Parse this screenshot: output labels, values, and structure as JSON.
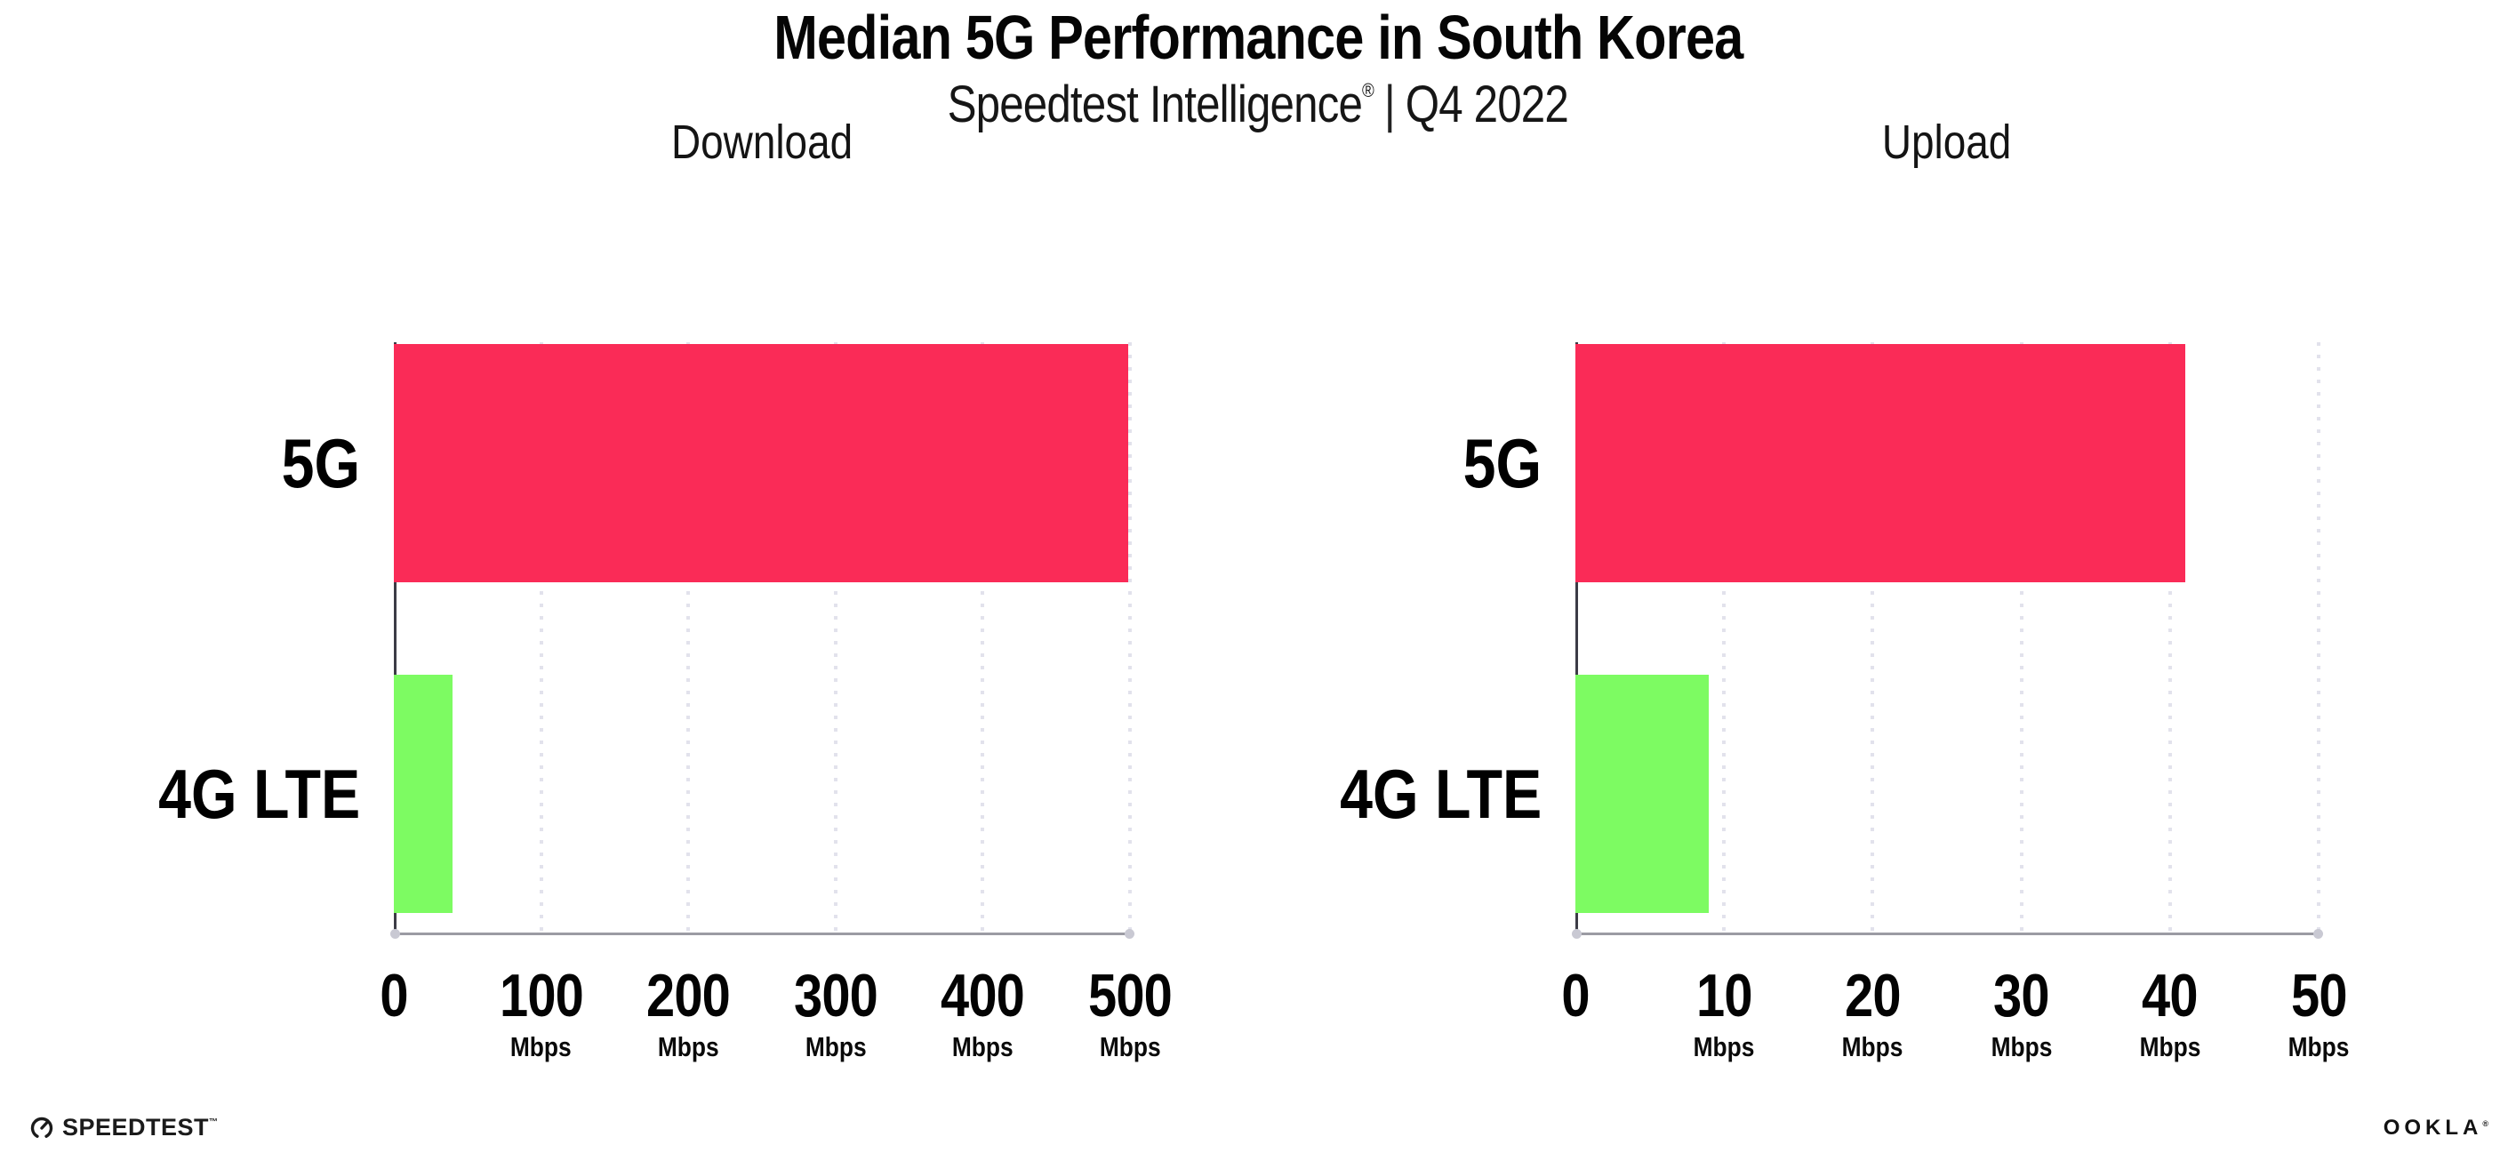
{
  "header": {
    "title": "Median 5G Performance in South Korea",
    "subtitle_brand": "Speedtest Intelligence",
    "subtitle_trademark": "®",
    "subtitle_separator": "|",
    "subtitle_period": "Q4 2022"
  },
  "footer": {
    "speedtest_label": "SPEEDTEST",
    "speedtest_trademark": "™",
    "ookla_label": "OOKLA",
    "ookla_trademark": "®"
  },
  "colors": {
    "bar_5g": "#fa2b57",
    "bar_4g_lte": "#7dfb62",
    "gridline": "#e2e2ec",
    "y_axis": "#3c3c46",
    "x_axis": "#9b9ba3",
    "text": "#0b0b0b"
  },
  "chart_data": [
    {
      "type": "bar",
      "orientation": "horizontal",
      "title": "Download",
      "categories": [
        "5G",
        "4G LTE"
      ],
      "values": [
        499,
        40
      ],
      "unit": "Mbps",
      "xlim": [
        0,
        500
      ],
      "xticks": [
        0,
        100,
        200,
        300,
        400,
        500
      ],
      "bar_colors": [
        "#fa2b57",
        "#7dfb62"
      ],
      "grid": "dotted-vertical",
      "legend": "none"
    },
    {
      "type": "bar",
      "orientation": "horizontal",
      "title": "Upload",
      "categories": [
        "5G",
        "4G LTE"
      ],
      "values": [
        41,
        9
      ],
      "unit": "Mbps",
      "xlim": [
        0,
        50
      ],
      "xticks": [
        0,
        10,
        20,
        30,
        40,
        50
      ],
      "bar_colors": [
        "#fa2b57",
        "#7dfb62"
      ],
      "grid": "dotted-vertical",
      "legend": "none"
    }
  ]
}
